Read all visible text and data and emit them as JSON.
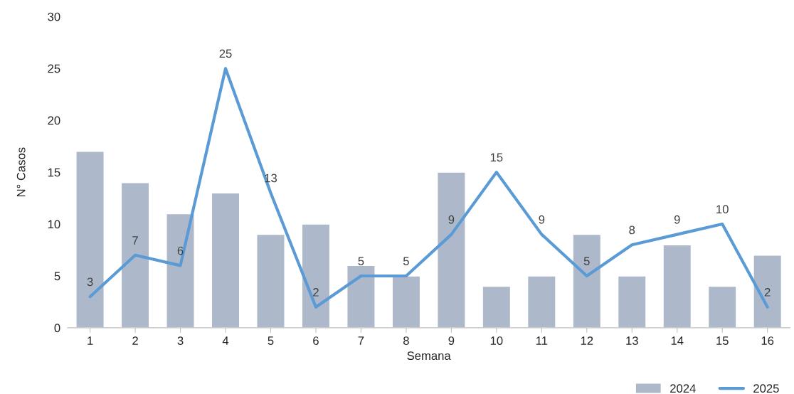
{
  "chart_data": {
    "type": "bar",
    "xlabel": "Semana",
    "ylabel": "N° Casos",
    "categories": [
      "1",
      "2",
      "3",
      "4",
      "5",
      "6",
      "7",
      "8",
      "9",
      "10",
      "11",
      "12",
      "13",
      "14",
      "15",
      "16"
    ],
    "series": [
      {
        "name": "2024",
        "color": "#adb9ca",
        "values": [
          17,
          14,
          11,
          13,
          9,
          10,
          6,
          5,
          15,
          4,
          5,
          9,
          5,
          8,
          4,
          7
        ]
      },
      {
        "name": "2025",
        "type": "line",
        "color": "#5b9bd5",
        "values": [
          3,
          7,
          6,
          25,
          13,
          2,
          5,
          5,
          9,
          15,
          9,
          5,
          8,
          9,
          10,
          2
        ],
        "value_labels": [
          "3",
          "7",
          "6",
          "25",
          "13",
          "2",
          "5",
          "5",
          "9",
          "15",
          "9",
          "5",
          "8",
          "9",
          "10",
          "2"
        ]
      }
    ],
    "ylim": [
      0,
      30
    ],
    "yticks": [
      0,
      5,
      10,
      15,
      20,
      25,
      30
    ],
    "grid": false,
    "legend": "bottom right",
    "marker": "none",
    "line_style": "solid"
  }
}
